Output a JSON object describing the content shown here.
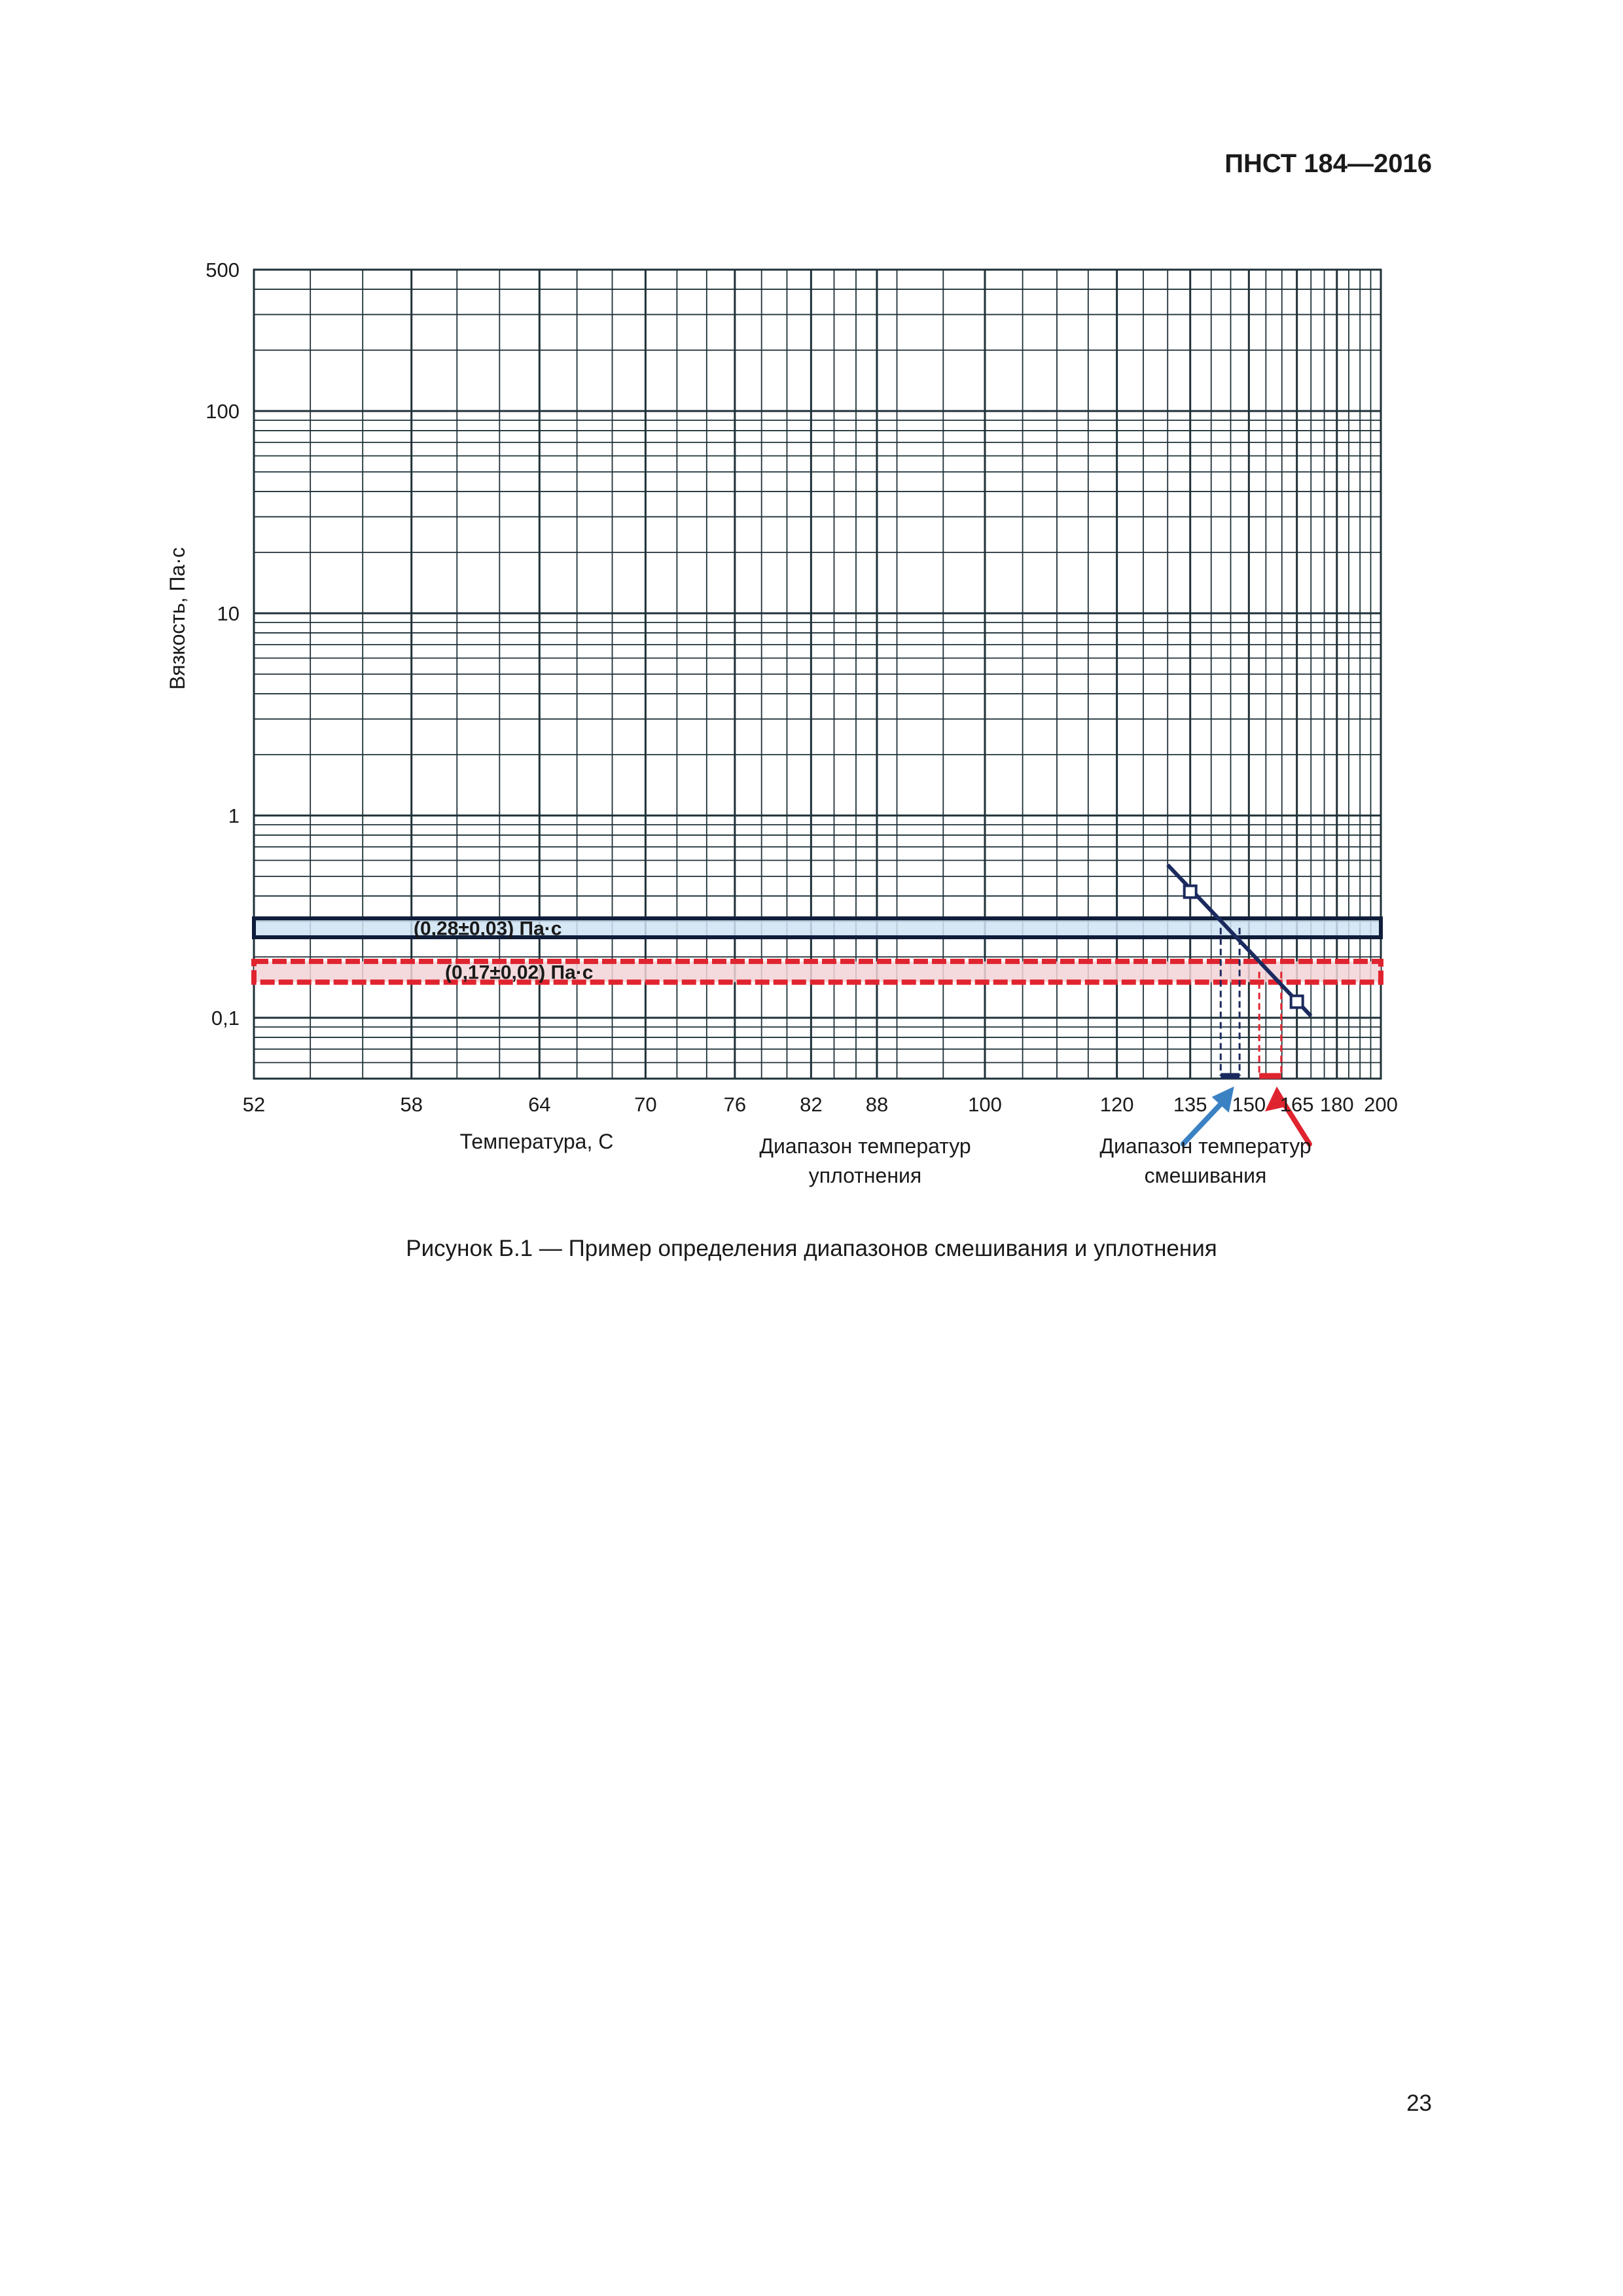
{
  "document": {
    "code": "ПНСТ 184—2016",
    "caption": "Рисунок Б.1 — Пример определения диапазонов смешивания и уплотнения",
    "page_number": "23"
  },
  "chart_data": {
    "type": "line",
    "title": "",
    "xlabel": "Температура, С",
    "ylabel": "Вязкость, Па·с",
    "x_scale": "reciprocal",
    "y_scale": "log",
    "xlim": [
      52,
      200
    ],
    "ylim": [
      0.05,
      500
    ],
    "grid": true,
    "x_ticks": [
      52,
      58,
      64,
      70,
      76,
      82,
      88,
      100,
      120,
      135,
      150,
      165,
      180,
      200
    ],
    "x_tick_labels": [
      "52",
      "58",
      "64",
      "70",
      "76",
      "82",
      "88",
      "100",
      "120",
      "135",
      "150",
      "165",
      "180",
      "200"
    ],
    "y_ticks": [
      0.1,
      1,
      10,
      100,
      500
    ],
    "y_tick_labels": [
      "0,1",
      "1",
      "10",
      "100",
      "500"
    ],
    "line_color": "#1b2a5e",
    "fit_line": {
      "x": [
        130,
        170
      ],
      "y": [
        0.57,
        0.102
      ]
    },
    "points": [
      {
        "x": 135,
        "y": 0.42
      },
      {
        "x": 165,
        "y": 0.12
      }
    ],
    "bands": [
      {
        "label": "(0,28±0,03) Па·с",
        "y_min": 0.25,
        "y_max": 0.31,
        "fill": "#cfe3f3",
        "stroke": "#0f1d3a"
      },
      {
        "label": "(0,17±0,02) Па·с",
        "y_min": 0.15,
        "y_max": 0.19,
        "fill": "#f2d3d7",
        "stroke": "#e0242f"
      }
    ],
    "ranges": [
      {
        "label_lines": [
          "Диапазон температур",
          "уплотнения"
        ],
        "x_min": 142.4,
        "x_max": 147.4,
        "color": "#1b2a5e",
        "arrow_color": "#3b82c4"
      },
      {
        "label_lines": [
          "Диапазон температур",
          "смешивания"
        ],
        "x_min": 153.0,
        "x_max": 159.8,
        "color": "#e0242f",
        "arrow_color": "#e0242f"
      }
    ]
  }
}
